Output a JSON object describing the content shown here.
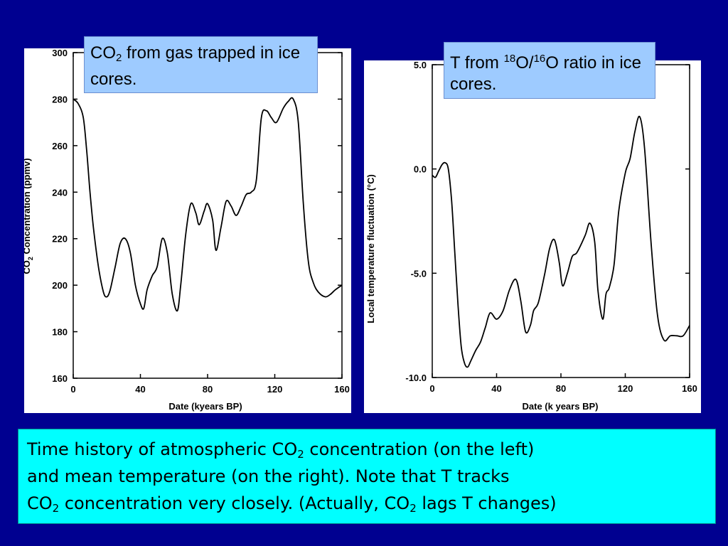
{
  "colors": {
    "background": "#000090",
    "panel": "#ffffff",
    "callout": "#9ecbff",
    "caption": "#00ffff"
  },
  "chart_data": [
    {
      "type": "line",
      "name": "co2",
      "xlabel": "Date (kyears BP)",
      "ylabel_parts": [
        "CO",
        "2",
        " Concentration (ppmv)"
      ],
      "xlim": [
        0,
        160
      ],
      "ylim": [
        160,
        300
      ],
      "xticks": [
        "0",
        "40",
        "80",
        "120",
        "160"
      ],
      "yticks": [
        "160",
        "180",
        "200",
        "220",
        "240",
        "260",
        "280",
        "300"
      ],
      "x": [
        0,
        3,
        6,
        8,
        10,
        12,
        15,
        18,
        20,
        22,
        25,
        28,
        31,
        34,
        37,
        40,
        42,
        44,
        47,
        50,
        53,
        56,
        59,
        62,
        64,
        67,
        70,
        73,
        75,
        78,
        80,
        83,
        85,
        88,
        91,
        94,
        97,
        100,
        103,
        106,
        109,
        112,
        115,
        118,
        121,
        125,
        128,
        131,
        134,
        137,
        140,
        143,
        146,
        150,
        153,
        156,
        160
      ],
      "y": [
        280,
        278,
        272,
        258,
        240,
        225,
        208,
        197,
        195,
        198,
        208,
        218,
        220,
        214,
        200,
        192,
        190,
        198,
        204,
        208,
        220,
        214,
        196,
        189,
        200,
        222,
        235,
        231,
        226,
        232,
        235,
        228,
        215,
        225,
        236,
        234,
        230,
        234,
        239,
        240,
        245,
        272,
        275,
        272,
        270,
        276,
        279,
        280,
        270,
        235,
        210,
        201,
        197,
        195,
        196,
        198,
        200
      ]
    },
    {
      "type": "line",
      "name": "temperature",
      "xlabel": "Date (k years BP)",
      "ylabel": "Local temperature fluctuation (°C)",
      "xlim": [
        0,
        160
      ],
      "ylim": [
        -10,
        5
      ],
      "xticks": [
        "0",
        "40",
        "80",
        "120",
        "160"
      ],
      "yticks": [
        "-10.0",
        "-5.0",
        "0.0",
        "5.0"
      ],
      "ytick_values": [
        -10,
        -5,
        0,
        5
      ],
      "x": [
        0,
        2,
        4,
        6,
        8,
        10,
        12,
        14,
        16,
        18,
        20,
        22,
        24,
        27,
        30,
        33,
        36,
        40,
        44,
        48,
        52,
        55,
        58,
        61,
        63,
        66,
        70,
        73,
        76,
        79,
        81,
        84,
        87,
        90,
        95,
        98,
        101,
        103,
        106,
        108,
        110,
        113,
        116,
        120,
        123,
        126,
        129,
        132,
        136,
        140,
        144,
        148,
        152,
        156,
        160
      ],
      "y": [
        -0.3,
        -0.4,
        -0.1,
        0.2,
        0.3,
        0.0,
        -1.5,
        -4.0,
        -6.5,
        -8.5,
        -9.3,
        -9.5,
        -9.2,
        -8.7,
        -8.3,
        -7.6,
        -6.9,
        -7.2,
        -6.8,
        -5.8,
        -5.3,
        -6.3,
        -7.8,
        -7.5,
        -6.8,
        -6.4,
        -5.0,
        -3.8,
        -3.4,
        -4.5,
        -5.6,
        -5.0,
        -4.2,
        -4.0,
        -3.2,
        -2.6,
        -3.5,
        -5.8,
        -7.2,
        -6.0,
        -5.7,
        -4.6,
        -2.0,
        -0.2,
        0.5,
        1.8,
        2.5,
        1.0,
        -3.5,
        -7.0,
        -8.2,
        -8.0,
        -8.0,
        -8.0,
        -7.5
      ]
    }
  ],
  "callouts": {
    "co2": {
      "main": "CO",
      "sub": "2",
      "rest": " from gas trapped in ice cores."
    },
    "temperature": {
      "prefix": "T from ",
      "sup1": "18",
      "mid": "O/",
      "sup2": "16",
      "rest": "O ratio in ice cores."
    }
  },
  "caption": {
    "line1": "Time history of atmospheric CO",
    "line1_sub": "2",
    "line1_rest": " concentration (on the left)",
    "line2": "and mean temperature (on the right). Note that T tracks",
    "line3_a": "CO",
    "line3_sub1": "2",
    "line3_b": " concentration very closely. (Actually, CO",
    "line3_sub2": "2",
    "line3_c": " lags T changes)"
  }
}
